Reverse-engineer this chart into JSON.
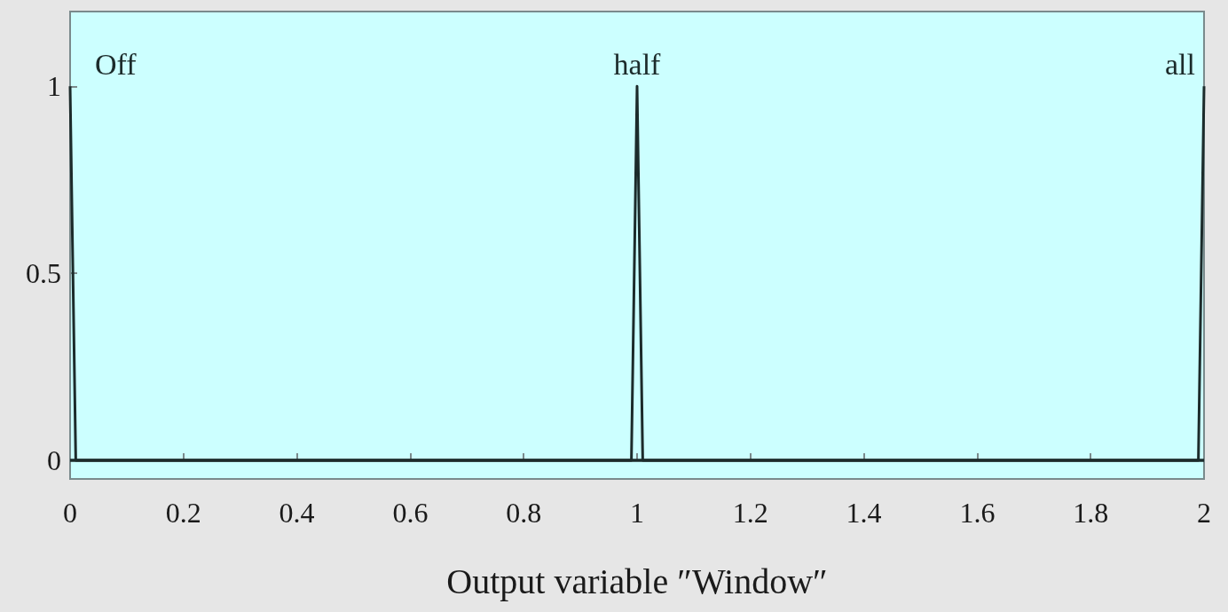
{
  "chart_data": {
    "type": "line",
    "xlabel": "Output variable ″Window″",
    "xlim": [
      0,
      2
    ],
    "xticks": [
      0,
      0.2,
      0.4,
      0.6,
      0.8,
      1,
      1.2,
      1.4,
      1.6,
      1.8,
      2
    ],
    "ylim": [
      -0.05,
      1.2
    ],
    "yticks": [
      0,
      0.5,
      1
    ],
    "grid": false,
    "legend": false,
    "series": [
      {
        "name": "Off",
        "color": "#1c2b2b",
        "x": [
          0,
          0.01,
          2
        ],
        "values": [
          1,
          0,
          0
        ]
      },
      {
        "name": "half",
        "color": "#1c2b2b",
        "x": [
          0,
          0.99,
          1,
          1.01,
          2
        ],
        "values": [
          0,
          0,
          1,
          0,
          0
        ]
      },
      {
        "name": "all",
        "color": "#1c2b2b",
        "x": [
          0,
          1.99,
          2
        ],
        "values": [
          0,
          0,
          1
        ]
      }
    ]
  }
}
